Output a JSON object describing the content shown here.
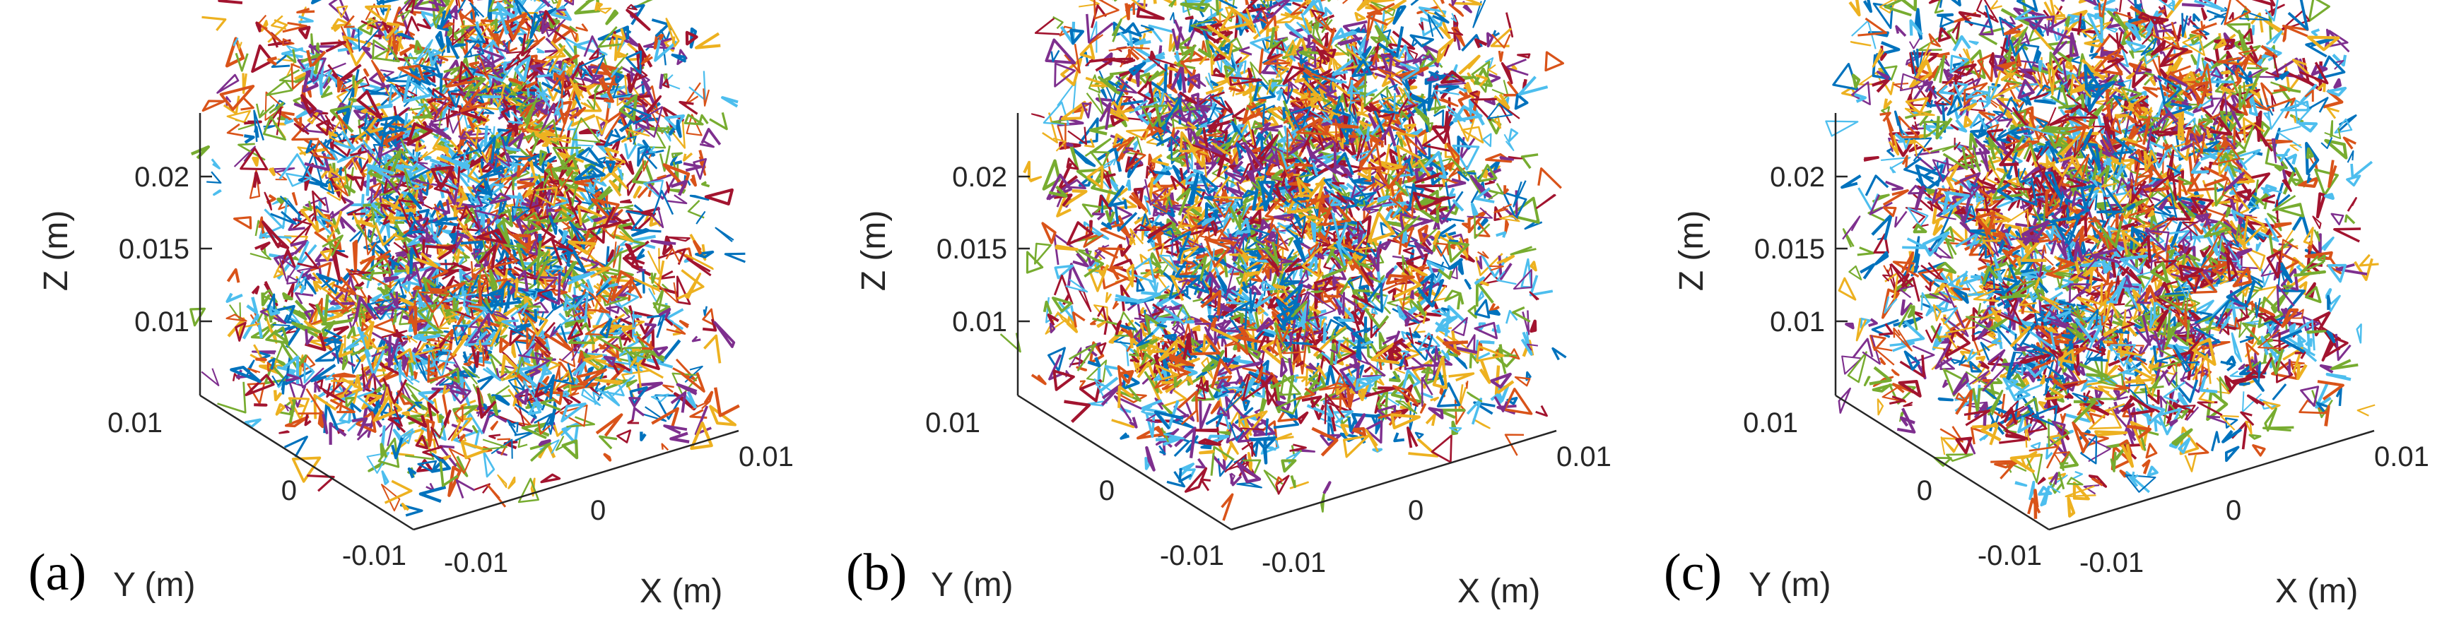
{
  "chart_data": [
    {
      "type": "scatter",
      "panel_label": "(a)",
      "xlabel": "X (m)",
      "ylabel": "Y (m)",
      "zlabel": "Z (m)",
      "xticks": [
        "-0.01",
        "0",
        "0.01"
      ],
      "yticks": [
        "-0.01",
        "0",
        "0.01"
      ],
      "zticks": [
        "0.01",
        "0.015",
        "0.02"
      ],
      "xlim": [
        -0.0125,
        0.0125
      ],
      "ylim": [
        -0.0125,
        0.0125
      ],
      "zlim": [
        0.0,
        0.025
      ],
      "elements": "3D fracture segments"
    },
    {
      "type": "scatter",
      "panel_label": "(b)",
      "xlabel": "X (m)",
      "ylabel": "Y (m)",
      "zlabel": "Z (m)",
      "xticks": [
        "-0.01",
        "0",
        "0.01"
      ],
      "yticks": [
        "-0.01",
        "0",
        "0.01"
      ],
      "zticks": [
        "0.01",
        "0.015",
        "0.02"
      ],
      "xlim": [
        -0.0125,
        0.0125
      ],
      "ylim": [
        -0.0125,
        0.0125
      ],
      "zlim": [
        0.0,
        0.025
      ],
      "elements": "3D fracture segments"
    },
    {
      "type": "scatter",
      "panel_label": "(c)",
      "xlabel": "X (m)",
      "ylabel": "Y (m)",
      "zlabel": "Z (m)",
      "xticks": [
        "-0.01",
        "0",
        "0.01"
      ],
      "yticks": [
        "-0.01",
        "0",
        "0.01"
      ],
      "zticks": [
        "0.01",
        "0.015",
        "0.02"
      ],
      "xlim": [
        -0.0125,
        0.0125
      ],
      "ylim": [
        -0.0125,
        0.0125
      ],
      "zlim": [
        0.0,
        0.025
      ],
      "elements": "3D fracture segments"
    }
  ],
  "colors": [
    "#0072BD",
    "#D95319",
    "#EDB120",
    "#7E2F8E",
    "#77AC30",
    "#4DBEEE",
    "#A2142F"
  ]
}
